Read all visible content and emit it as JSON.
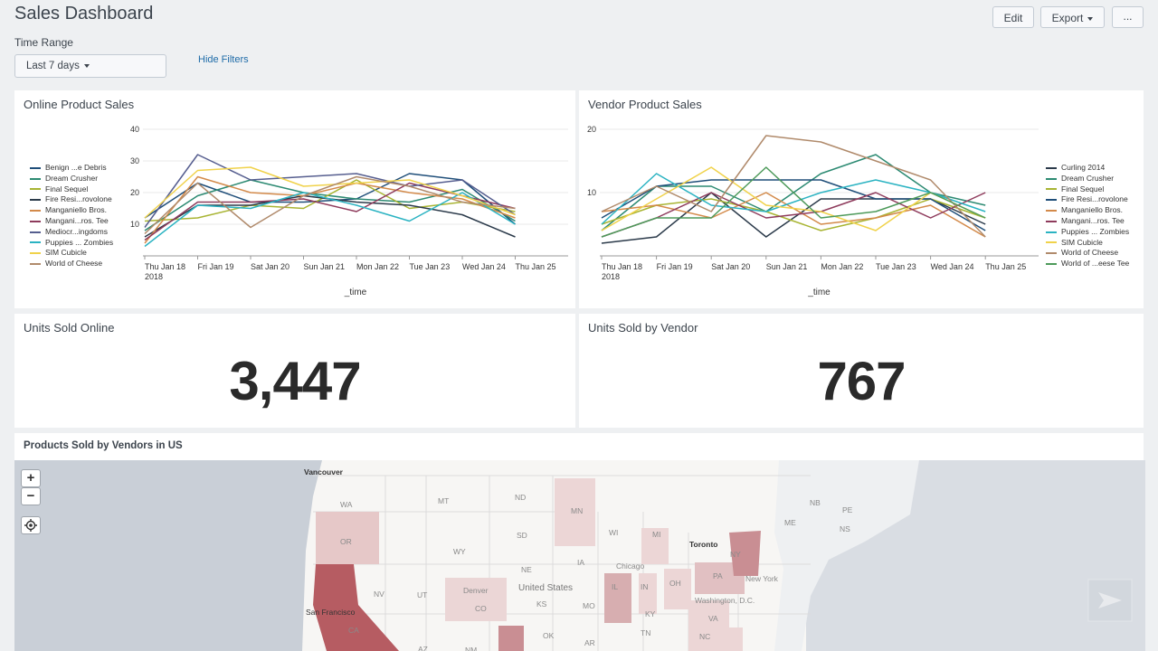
{
  "header": {
    "title": "Sales Dashboard",
    "edit_label": "Edit",
    "export_label": "Export",
    "more_label": "..."
  },
  "filters": {
    "time_range_label": "Time Range",
    "time_range_value": "Last 7 days",
    "hide_filters_label": "Hide Filters"
  },
  "panels": {
    "online_sales_title": "Online Product Sales",
    "vendor_sales_title": "Vendor Product Sales",
    "units_online_title": "Units Sold Online",
    "units_online_value": "3,447",
    "units_vendor_title": "Units Sold by Vendor",
    "units_vendor_value": "767",
    "map_title": "Products Sold by Vendors in US"
  },
  "chart_data": [
    {
      "type": "line",
      "title": "Online Product Sales",
      "xlabel": "_time",
      "ylabel": "",
      "ylim": [
        0,
        40
      ],
      "yticks": [
        10,
        20,
        30,
        40
      ],
      "x": [
        "Thu Jan 18 2018",
        "Fri Jan 19",
        "Sat Jan 20",
        "Sun Jan 21",
        "Mon Jan 22",
        "Tue Jan 23",
        "Wed Jan 24",
        "Thu Jan 25"
      ],
      "legend_position": "left",
      "grid": true,
      "series": [
        {
          "name": "Benign ...e Debris",
          "color": "#1f4e79",
          "values": [
            12,
            23,
            17,
            17,
            18,
            26,
            24,
            10
          ]
        },
        {
          "name": "Dream Crusher",
          "color": "#2c8a72",
          "values": [
            8,
            19,
            24,
            20,
            18,
            17,
            21,
            11
          ]
        },
        {
          "name": "Final Sequel",
          "color": "#a8b432",
          "values": [
            11,
            12,
            16,
            15,
            24,
            15,
            17,
            14
          ]
        },
        {
          "name": "Fire Resi...rovolone",
          "color": "#2b3a4a",
          "values": [
            6,
            16,
            16,
            19,
            17,
            16,
            13,
            6
          ]
        },
        {
          "name": "Manganiello Bros.",
          "color": "#d38a4a",
          "values": [
            4,
            25,
            20,
            19,
            23,
            20,
            18,
            12
          ]
        },
        {
          "name": "Mangani...ros. Tee",
          "color": "#8e3b5c",
          "values": [
            5,
            17,
            17,
            18,
            14,
            23,
            19,
            15
          ]
        },
        {
          "name": "Mediocr...ingdoms",
          "color": "#565e8f",
          "values": [
            9,
            32,
            24,
            25,
            26,
            22,
            24,
            13
          ]
        },
        {
          "name": "Puppies ... Zombies",
          "color": "#2bb3c2",
          "values": [
            3,
            16,
            15,
            20,
            16,
            11,
            20,
            10
          ]
        },
        {
          "name": "SIM Cubicle",
          "color": "#f0d24a",
          "values": [
            12,
            27,
            28,
            22,
            23,
            24,
            19,
            13
          ]
        },
        {
          "name": "World of Cheese",
          "color": "#b08a6b",
          "values": [
            7,
            23,
            9,
            19,
            25,
            22,
            17,
            15
          ]
        }
      ]
    },
    {
      "type": "line",
      "title": "Vendor Product Sales",
      "xlabel": "_time",
      "ylabel": "",
      "ylim": [
        0,
        20
      ],
      "yticks": [
        10,
        20
      ],
      "x": [
        "Thu Jan 18 2018",
        "Fri Jan 19",
        "Sat Jan 20",
        "Sun Jan 21",
        "Mon Jan 22",
        "Tue Jan 23",
        "Wed Jan 24",
        "Thu Jan 25"
      ],
      "legend_position": "right",
      "grid": true,
      "series": [
        {
          "name": "Curling 2014",
          "color": "#2b3a4a",
          "values": [
            2,
            3,
            10,
            3,
            9,
            9,
            9,
            5
          ]
        },
        {
          "name": "Dream Crusher",
          "color": "#2c8a72",
          "values": [
            4,
            11,
            11,
            7,
            13,
            16,
            10,
            8
          ]
        },
        {
          "name": "Final Sequel",
          "color": "#a8b432",
          "values": [
            5,
            8,
            9,
            7,
            4,
            6,
            9,
            6
          ]
        },
        {
          "name": "Fire Resi...rovolone",
          "color": "#1f4e79",
          "values": [
            6,
            11,
            12,
            12,
            12,
            9,
            9,
            4
          ]
        },
        {
          "name": "Manganiello Bros.",
          "color": "#d38a4a",
          "values": [
            7,
            8,
            6,
            10,
            5,
            6,
            8,
            3
          ]
        },
        {
          "name": "Mangani...ros. Tee",
          "color": "#8e3b5c",
          "values": [
            3,
            6,
            10,
            6,
            7,
            10,
            6,
            10
          ]
        },
        {
          "name": "Puppies ... Zombies",
          "color": "#2bb3c2",
          "values": [
            5,
            13,
            8,
            7,
            10,
            12,
            10,
            7
          ]
        },
        {
          "name": "SIM Cubicle",
          "color": "#f0d24a",
          "values": [
            4,
            9,
            14,
            8,
            7,
            4,
            10,
            6
          ]
        },
        {
          "name": "World of Cheese",
          "color": "#b08a6b",
          "values": [
            7,
            11,
            7,
            19,
            18,
            15,
            12,
            3
          ]
        },
        {
          "name": "World of ...eese Tee",
          "color": "#4d9a5a",
          "values": [
            3,
            6,
            6,
            14,
            6,
            7,
            10,
            6
          ]
        }
      ]
    }
  ],
  "map": {
    "zoom_in_label": "+",
    "zoom_out_label": "−",
    "labels": [
      "Vancouver",
      "WA",
      "MT",
      "ND",
      "MN",
      "WI",
      "MI",
      "OR",
      "WY",
      "SD",
      "IA",
      "Toronto",
      "NY",
      "NB",
      "PE",
      "ME",
      "NS",
      "Chicago",
      "PA",
      "New York",
      "NV",
      "UT",
      "Denver",
      "CO",
      "United States",
      "NE",
      "KS",
      "MO",
      "IL",
      "IN",
      "OH",
      "Washington, D.C.",
      "San Francisco",
      "CA",
      "VA",
      "KY",
      "TN",
      "NC",
      "OK",
      "AR",
      "AZ",
      "NM"
    ]
  }
}
